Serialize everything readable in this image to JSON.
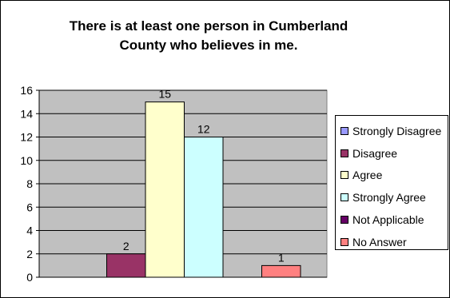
{
  "chart_data": {
    "type": "bar",
    "title": "There is at least one person in Cumberland County who believes in me.",
    "title_lines": [
      "There is at least one person in Cumberland",
      "County who believes in me."
    ],
    "xlabel": "",
    "ylabel": "",
    "ylim": [
      0,
      16
    ],
    "yticks": [
      0,
      2,
      4,
      6,
      8,
      10,
      12,
      14,
      16
    ],
    "ytick_labels": [
      "0",
      "2",
      "4",
      "6",
      "8",
      "10",
      "12",
      "14",
      "16"
    ],
    "grid": true,
    "legend_position": "right",
    "series": [
      {
        "name": "Strongly Disagree",
        "value": 0,
        "label": "",
        "color": "#9999ff"
      },
      {
        "name": "Disagree",
        "value": 2,
        "label": "2",
        "color": "#993366"
      },
      {
        "name": "Agree",
        "value": 15,
        "label": "15",
        "color": "#ffffcc"
      },
      {
        "name": "Strongly Agree",
        "value": 12,
        "label": "12",
        "color": "#ccffff"
      },
      {
        "name": "Not Applicable",
        "value": 0,
        "label": "",
        "color": "#660066"
      },
      {
        "name": "No Answer",
        "value": 1,
        "label": "1",
        "color": "#ff8080"
      }
    ],
    "plot_background": "#c0c0c0"
  }
}
